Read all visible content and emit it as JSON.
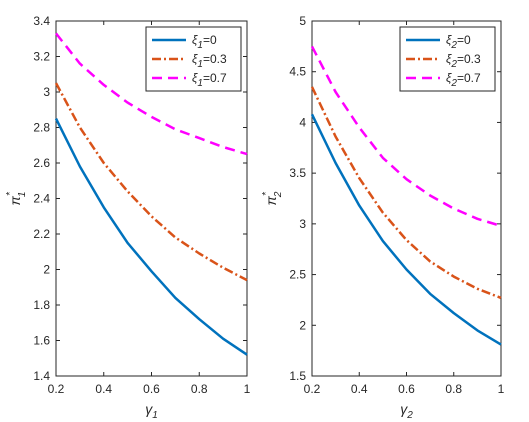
{
  "chart_data": [
    {
      "type": "line",
      "x": [
        0.2,
        0.3,
        0.4,
        0.5,
        0.6,
        0.7,
        0.8,
        0.9,
        1.0
      ],
      "xlim": [
        0.2,
        1
      ],
      "ylim": [
        1.4,
        3.4
      ],
      "xticks": [
        "0.2",
        "0.4",
        "0.6",
        "0.8",
        "1"
      ],
      "yticks": [
        "1.4",
        "1.6",
        "1.8",
        "2",
        "2.2",
        "2.4",
        "2.6",
        "2.8",
        "3",
        "3.2",
        "3.4"
      ],
      "xlabel": {
        "base": "γ",
        "sub": "1"
      },
      "ylabel": {
        "base": "π",
        "sub": "1",
        "sup": "*"
      },
      "legend_position": "top-right",
      "series": [
        {
          "name": {
            "base": "ξ",
            "sub": "1",
            "rest": "=0"
          },
          "color": "#0072BD",
          "style": "solid",
          "values": [
            2.85,
            2.58,
            2.35,
            2.15,
            1.99,
            1.84,
            1.72,
            1.61,
            1.52
          ]
        },
        {
          "name": {
            "base": "ξ",
            "sub": "1",
            "rest": "=0.3"
          },
          "color": "#D95319",
          "style": "dashdot",
          "values": [
            3.05,
            2.8,
            2.6,
            2.44,
            2.3,
            2.18,
            2.09,
            2.01,
            1.94
          ]
        },
        {
          "name": {
            "base": "ξ",
            "sub": "1",
            "rest": "=0.7"
          },
          "color": "#FF00FF",
          "style": "dashed",
          "values": [
            3.33,
            3.16,
            3.04,
            2.94,
            2.86,
            2.79,
            2.74,
            2.69,
            2.65
          ]
        }
      ]
    },
    {
      "type": "line",
      "x": [
        0.2,
        0.3,
        0.4,
        0.5,
        0.6,
        0.7,
        0.8,
        0.9,
        1.0
      ],
      "xlim": [
        0.2,
        1
      ],
      "ylim": [
        1.5,
        5
      ],
      "xticks": [
        "0.2",
        "0.4",
        "0.6",
        "0.8",
        "1"
      ],
      "yticks": [
        "1.5",
        "2",
        "2.5",
        "3",
        "3.5",
        "4",
        "4.5",
        "5"
      ],
      "xlabel": {
        "base": "γ",
        "sub": "2"
      },
      "ylabel": {
        "base": "π",
        "sub": "2",
        "sup": "*"
      },
      "legend_position": "top-right",
      "series": [
        {
          "name": {
            "base": "ξ",
            "sub": "2",
            "rest": "=0"
          },
          "color": "#0072BD",
          "style": "solid",
          "values": [
            4.08,
            3.6,
            3.18,
            2.83,
            2.55,
            2.31,
            2.12,
            1.95,
            1.81
          ]
        },
        {
          "name": {
            "base": "ξ",
            "sub": "2",
            "rest": "=0.3"
          },
          "color": "#D95319",
          "style": "dashdot",
          "values": [
            4.35,
            3.86,
            3.45,
            3.11,
            2.84,
            2.63,
            2.48,
            2.36,
            2.27
          ]
        },
        {
          "name": {
            "base": "ξ",
            "sub": "2",
            "rest": "=0.7"
          },
          "color": "#FF00FF",
          "style": "dashed",
          "values": [
            4.75,
            4.3,
            3.95,
            3.65,
            3.44,
            3.28,
            3.15,
            3.05,
            2.98
          ]
        }
      ]
    }
  ]
}
